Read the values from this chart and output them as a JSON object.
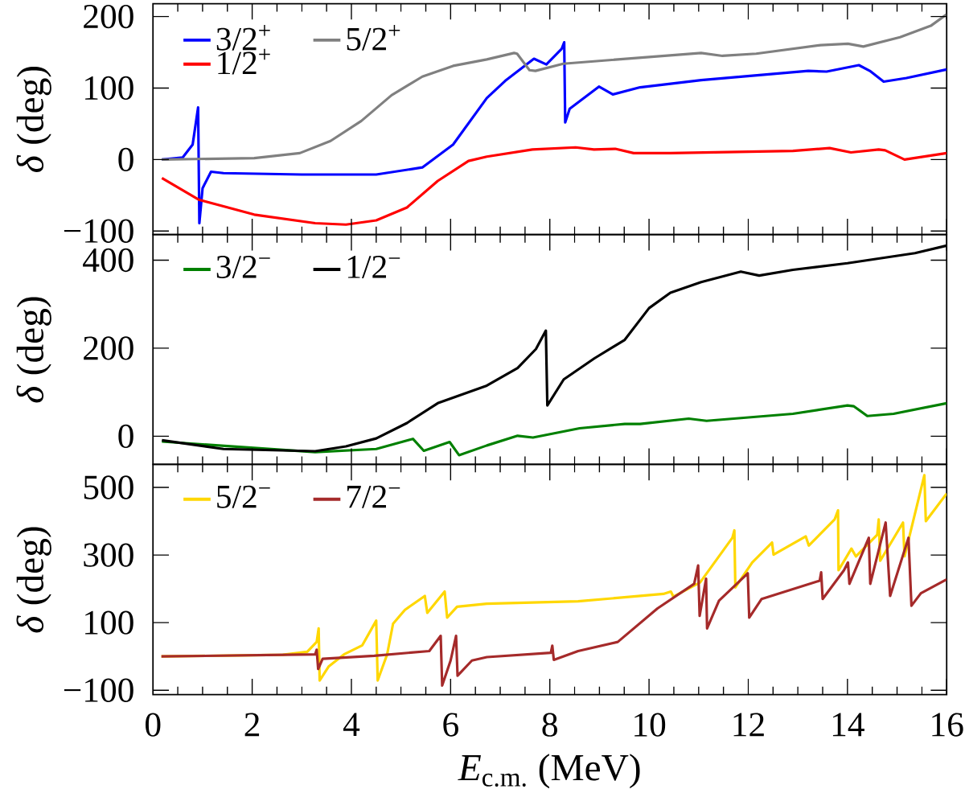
{
  "chart_data": [
    {
      "type": "line",
      "ylabel": "*δ* (deg)",
      "xlim": [
        0,
        16
      ],
      "xticks": [
        0,
        {
          "value": 0.5,
          "label": null
        },
        {
          "value": 1,
          "label": null
        },
        {
          "value": 1.5,
          "label": null
        },
        2,
        {
          "value": 2.5,
          "label": null
        },
        {
          "value": 3,
          "label": null
        },
        {
          "value": 3.5,
          "label": null
        },
        4,
        {
          "value": 4.5,
          "label": null
        },
        {
          "value": 5,
          "label": null
        },
        {
          "value": 5.5,
          "label": null
        },
        6,
        {
          "value": 6.5,
          "label": null
        },
        {
          "value": 7,
          "label": null
        },
        {
          "value": 7.5,
          "label": null
        },
        8,
        {
          "value": 8.5,
          "label": null
        },
        {
          "value": 9,
          "label": null
        },
        {
          "value": 9.5,
          "label": null
        },
        10,
        {
          "value": 10.5,
          "label": null
        },
        {
          "value": 11,
          "label": null
        },
        {
          "value": 11.5,
          "label": null
        },
        12,
        {
          "value": 12.5,
          "label": null
        },
        {
          "value": 13,
          "label": null
        },
        {
          "value": 13.5,
          "label": null
        },
        14,
        {
          "value": 14.5,
          "label": null
        },
        {
          "value": 15,
          "label": null
        },
        {
          "value": 15.5,
          "label": null
        },
        16
      ],
      "ylim": [
        -105,
        218
      ],
      "yticks": [
        {
          "value": -100,
          "label": "−100"
        },
        0,
        100,
        200
      ],
      "legend": "top left",
      "tick_labels": "y",
      "line_style": "solid",
      "marker": "none",
      "series": [
        {
          "name": "3/2$^{+}$",
          "color": "#0000ff",
          "x": [
            0.18,
            0.6,
            0.8,
            0.91,
            0.935,
            1.0,
            1.17,
            1.42,
            3.0,
            4.5,
            5.43,
            6.05,
            6.73,
            7.1,
            7.68,
            7.93,
            8.24,
            8.29,
            8.31,
            8.4,
            8.99,
            9.27,
            9.82,
            11.05,
            13.21,
            13.58,
            14.23,
            14.45,
            14.73,
            15.19,
            16
          ],
          "values": [
            0,
            3,
            21,
            73,
            -89,
            -40,
            -17,
            -19,
            -21,
            -21,
            -11,
            21,
            86,
            110,
            141,
            133,
            155,
            164,
            52,
            71,
            102,
            91,
            101,
            111,
            124,
            123,
            132,
            124,
            109,
            114,
            126
          ]
        },
        {
          "name": "5/2$^{+}$",
          "color": "#808080",
          "x": [
            0.18,
            2.04,
            2.96,
            3.58,
            4.2,
            4.81,
            5.43,
            6.05,
            6.73,
            7.28,
            7.34,
            7.59,
            7.71,
            8.27,
            11.05,
            11.48,
            12.16,
            13.46,
            14.01,
            14.32,
            15.06,
            15.68,
            16
          ],
          "values": [
            0,
            2,
            9,
            26,
            54,
            90,
            116,
            131,
            140,
            149,
            148,
            125,
            124,
            134,
            149,
            145,
            148,
            160,
            162,
            158,
            171,
            187,
            203
          ]
        },
        {
          "name": "1/2$^{+}$",
          "color": "#ff0000",
          "x": [
            0.18,
            0.92,
            2.04,
            3.27,
            3.89,
            4.5,
            5.12,
            5.74,
            6.36,
            6.73,
            7.65,
            8.52,
            8.89,
            9.32,
            9.69,
            10.43,
            12.9,
            13.64,
            14.07,
            14.63,
            14.76,
            15.15,
            16
          ],
          "values": [
            -26,
            -56,
            -77,
            -89,
            -91,
            -85,
            -67,
            -30,
            -2,
            4,
            14,
            17,
            14,
            15,
            9,
            9,
            12,
            16,
            10,
            14,
            13,
            0,
            9
          ]
        }
      ]
    },
    {
      "type": "line",
      "ylabel": "*δ* (deg)",
      "xlim": [
        0,
        16
      ],
      "xticks": [
        0,
        {
          "value": 0.5,
          "label": null
        },
        {
          "value": 1,
          "label": null
        },
        {
          "value": 1.5,
          "label": null
        },
        2,
        {
          "value": 2.5,
          "label": null
        },
        {
          "value": 3,
          "label": null
        },
        {
          "value": 3.5,
          "label": null
        },
        4,
        {
          "value": 4.5,
          "label": null
        },
        {
          "value": 5,
          "label": null
        },
        {
          "value": 5.5,
          "label": null
        },
        6,
        {
          "value": 6.5,
          "label": null
        },
        {
          "value": 7,
          "label": null
        },
        {
          "value": 7.5,
          "label": null
        },
        8,
        {
          "value": 8.5,
          "label": null
        },
        {
          "value": 9,
          "label": null
        },
        {
          "value": 9.5,
          "label": null
        },
        10,
        {
          "value": 10.5,
          "label": null
        },
        {
          "value": 11,
          "label": null
        },
        {
          "value": 11.5,
          "label": null
        },
        12,
        {
          "value": 12.5,
          "label": null
        },
        {
          "value": 13,
          "label": null
        },
        {
          "value": 13.5,
          "label": null
        },
        14,
        {
          "value": 14.5,
          "label": null
        },
        {
          "value": 15,
          "label": null
        },
        {
          "value": 15.5,
          "label": null
        },
        16
      ],
      "ylim": [
        -64,
        458
      ],
      "yticks": [
        0,
        200,
        400
      ],
      "legend": "top left",
      "tick_labels": "y",
      "line_style": "solid",
      "marker": "none",
      "series": [
        {
          "name": "3/2$^{−}$",
          "color": "#008000",
          "x": [
            0.18,
            3.27,
            4.5,
            5.24,
            5.46,
            5.98,
            6.17,
            6.73,
            7.35,
            7.66,
            8.6,
            9.51,
            9.82,
            10.8,
            11.16,
            12.9,
            14.0,
            14.13,
            14.4,
            14.93,
            16
          ],
          "values": [
            -12,
            -36,
            -29,
            -6,
            -33,
            -13,
            -43,
            -21,
            1,
            -3,
            18,
            28,
            28,
            40,
            35,
            51,
            70,
            68,
            46,
            51,
            75
          ]
        },
        {
          "name": "1/2$^{−}$",
          "color": "#000000",
          "x": [
            0.18,
            1.42,
            3.27,
            3.89,
            4.5,
            5.12,
            5.74,
            6.73,
            7.35,
            7.72,
            7.92,
            7.95,
            8.28,
            8.9,
            9.51,
            10.0,
            10.43,
            11.05,
            11.85,
            12.22,
            12.9,
            14.0,
            15.36,
            16
          ],
          "values": [
            -9,
            -29,
            -34,
            -23,
            -5,
            30,
            75,
            115,
            155,
            198,
            240,
            70,
            129,
            177,
            219,
            291,
            326,
            350,
            374,
            365,
            378,
            393,
            416,
            433
          ]
        }
      ]
    },
    {
      "type": "line",
      "ylabel": "*δ* (deg)",
      "xlabel": "*E*$_{c.m.}$ (MeV)",
      "xlim": [
        0,
        16
      ],
      "xticks": [
        0,
        {
          "value": 0.5,
          "label": null
        },
        {
          "value": 1,
          "label": null
        },
        {
          "value": 1.5,
          "label": null
        },
        2,
        {
          "value": 2.5,
          "label": null
        },
        {
          "value": 3,
          "label": null
        },
        {
          "value": 3.5,
          "label": null
        },
        4,
        {
          "value": 4.5,
          "label": null
        },
        {
          "value": 5,
          "label": null
        },
        {
          "value": 5.5,
          "label": null
        },
        6,
        {
          "value": 6.5,
          "label": null
        },
        {
          "value": 7,
          "label": null
        },
        {
          "value": 7.5,
          "label": null
        },
        8,
        {
          "value": 8.5,
          "label": null
        },
        {
          "value": 9,
          "label": null
        },
        {
          "value": 9.5,
          "label": null
        },
        10,
        {
          "value": 10.5,
          "label": null
        },
        {
          "value": 11,
          "label": null
        },
        {
          "value": 11.5,
          "label": null
        },
        12,
        {
          "value": 12.5,
          "label": null
        },
        {
          "value": 13,
          "label": null
        },
        {
          "value": 13.5,
          "label": null
        },
        14,
        {
          "value": 14.5,
          "label": null
        },
        {
          "value": 15,
          "label": null
        },
        {
          "value": 15.5,
          "label": null
        },
        16
      ],
      "ylim": [
        -113,
        568
      ],
      "yticks": [
        {
          "value": -100,
          "label": "−100"
        },
        100,
        300,
        500
      ],
      "legend": "top left",
      "line_style": "solid",
      "marker": "none",
      "series": [
        {
          "name": "5/2$^{−}$",
          "color": "#ffd700",
          "x": [
            0.17,
            2.62,
            3.11,
            3.3,
            3.34,
            3.36,
            3.54,
            3.85,
            4.22,
            4.5,
            4.53,
            4.72,
            4.84,
            5.08,
            5.48,
            5.53,
            5.88,
            5.93,
            6.13,
            6.73,
            8.57,
            10.29,
            10.44,
            10.49,
            11.03,
            11.68,
            11.72,
            11.74,
            12.08,
            12.48,
            12.51,
            13.16,
            13.22,
            13.74,
            13.81,
            13.82,
            14.08,
            14.17,
            14.6,
            14.63,
            14.66,
            15.12,
            15.15,
            15.55,
            15.58,
            16
          ],
          "values": [
            0,
            5,
            14,
            43,
            83,
            -71,
            -30,
            6,
            33,
            106,
            -71,
            6,
            97,
            138,
            179,
            129,
            192,
            115,
            147,
            156,
            163,
            185,
            192,
            177,
            219,
            351,
            373,
            204,
            278,
            337,
            301,
            355,
            328,
            405,
            432,
            255,
            319,
            296,
            360,
            405,
            283,
            396,
            296,
            536,
            400,
            482
          ]
        },
        {
          "name": "7/2$^{−}$",
          "color": "#a52a2a",
          "x": [
            0.17,
            3.27,
            3.3,
            3.33,
            3.42,
            4.46,
            5.57,
            5.8,
            5.83,
            6.0,
            6.11,
            6.14,
            6.43,
            6.73,
            8.02,
            8.05,
            8.08,
            8.57,
            9.37,
            10.17,
            10.91,
            10.99,
            11.02,
            11.15,
            11.17,
            11.41,
            11.99,
            12.02,
            12.27,
            13.44,
            13.47,
            13.5,
            13.93,
            14.01,
            14.04,
            14.43,
            14.46,
            14.77,
            14.86,
            15.23,
            15.29,
            15.48,
            16
          ],
          "values": [
            0,
            6,
            20,
            -37,
            -7,
            2,
            16,
            61,
            -86,
            -12,
            61,
            -57,
            -12,
            -2,
            11,
            32,
            -10,
            16,
            43,
            142,
            215,
            269,
            120,
            230,
            83,
            165,
            246,
            115,
            170,
            224,
            249,
            170,
            255,
            278,
            215,
            351,
            215,
            396,
            179,
            351,
            150,
            187,
            228
          ]
        }
      ]
    }
  ]
}
